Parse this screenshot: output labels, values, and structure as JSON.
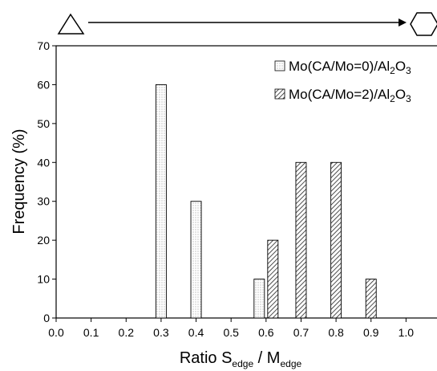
{
  "chart_data": {
    "type": "bar",
    "xlabel": {
      "main": "Ratio S",
      "sub1": "edge",
      "sep": " / M",
      "sub2": "edge"
    },
    "ylabel": "Frequency (%)",
    "xlim": [
      0.0,
      1.1
    ],
    "ylim": [
      0,
      70
    ],
    "x_ticks": [
      "0.0",
      "0.1",
      "0.2",
      "0.3",
      "0.4",
      "0.5",
      "0.6",
      "0.7",
      "0.8",
      "0.9",
      "1.0"
    ],
    "y_ticks": [
      "0",
      "10",
      "20",
      "30",
      "40",
      "50",
      "60",
      "70"
    ],
    "legend_position": "top-right",
    "series": [
      {
        "name": {
          "main": "Mo(CA/Mo=0)/Al",
          "sub": "2",
          "tail": "O",
          "sub2": "3"
        },
        "pattern": "dots",
        "points": [
          {
            "x": 0.3,
            "y": 60
          },
          {
            "x": 0.4,
            "y": 30
          },
          {
            "x": 0.6,
            "y": 10
          }
        ]
      },
      {
        "name": {
          "main": "Mo(CA/Mo=2)/Al",
          "sub": "2",
          "tail": "O",
          "sub2": "3"
        },
        "pattern": "hatch",
        "points": [
          {
            "x": 0.6,
            "y": 20
          },
          {
            "x": 0.7,
            "y": 40
          },
          {
            "x": 0.8,
            "y": 40
          },
          {
            "x": 0.9,
            "y": 10
          }
        ]
      }
    ],
    "shape_indicator": {
      "from": "triangle",
      "to": "hexagon",
      "direction": "arrow-right"
    }
  }
}
